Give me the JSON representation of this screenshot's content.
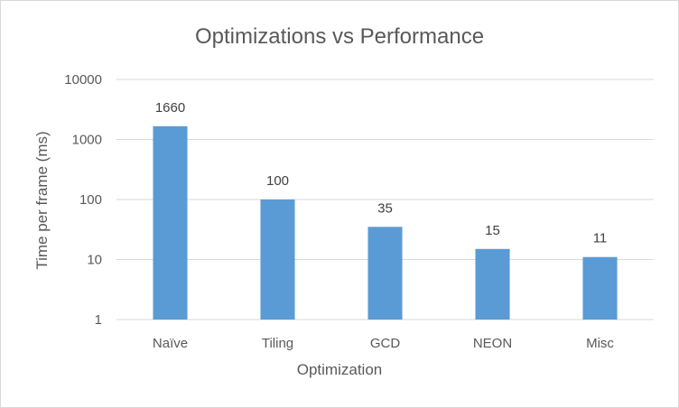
{
  "chart_data": {
    "type": "bar",
    "title": "Optimizations vs Performance",
    "xlabel": "Optimization",
    "ylabel": "Time per frame (ms)",
    "yscale": "log",
    "ylim": [
      1,
      10000
    ],
    "yticks": [
      1,
      10,
      100,
      1000,
      10000
    ],
    "ytick_labels": [
      "1",
      "10",
      "100",
      "1000",
      "10000"
    ],
    "categories": [
      "Naïve",
      "Tiling",
      "GCD",
      "NEON",
      "Misc"
    ],
    "values": [
      1660,
      100,
      35,
      15,
      11
    ],
    "data_labels": [
      "1660",
      "100",
      "35",
      "15",
      "11"
    ],
    "bar_color": "#5b9bd5",
    "grid": true,
    "legend": "none"
  }
}
